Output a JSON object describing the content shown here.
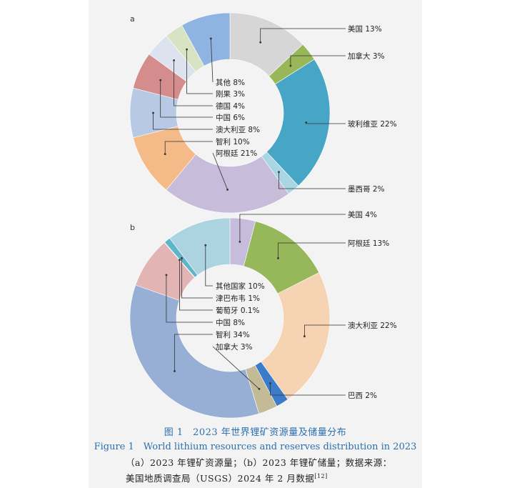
{
  "chart_data": [
    {
      "type": "donut",
      "panel_label": "a",
      "title": "2023年世界锂矿资源量",
      "slices": [
        {
          "label": "美国",
          "value": 13,
          "display": "美国 13%",
          "color": "#d6d6d6"
        },
        {
          "label": "加拿大",
          "value": 3,
          "display": "加拿大 3%",
          "color": "#97b758"
        },
        {
          "label": "玻利维亚",
          "value": 22,
          "display": "玻利维亚 22%",
          "color": "#47a6c6"
        },
        {
          "label": "墨西哥",
          "value": 2,
          "display": "墨西哥 2%",
          "color": "#a9d6e2"
        },
        {
          "label": "阿根廷",
          "value": 21,
          "display": "阿根廷 21%",
          "color": "#c7bcd9"
        },
        {
          "label": "智利",
          "value": 10,
          "display": "智利 10%",
          "color": "#f4ba87"
        },
        {
          "label": "澳大利亚",
          "value": 8,
          "display": "澳大利亚 8%",
          "color": "#b7c9e4"
        },
        {
          "label": "中国",
          "value": 6,
          "display": "中国 6%",
          "color": "#d58c8c"
        },
        {
          "label": "德国",
          "value": 4,
          "display": "德国 4%",
          "color": "#dce3ee"
        },
        {
          "label": "刚果",
          "value": 3,
          "display": "刚果 3%",
          "color": "#d7e4c4"
        },
        {
          "label": "其他",
          "value": 8,
          "display": "其他 8%",
          "color": "#8fb4e1"
        }
      ]
    },
    {
      "type": "donut",
      "panel_label": "b",
      "title": "2023年世界锂矿储量",
      "slices": [
        {
          "label": "美国",
          "value": 4,
          "display": "美国 4%",
          "color": "#c8bcdc"
        },
        {
          "label": "阿根廷",
          "value": 13,
          "display": "阿根廷 13%",
          "color": "#96b75a"
        },
        {
          "label": "澳大利亚",
          "value": 22,
          "display": "澳大利亚 22%",
          "color": "#f5d3b3"
        },
        {
          "label": "巴西",
          "value": 2,
          "display": "巴西 2%",
          "color": "#3c7bc9"
        },
        {
          "label": "加拿大",
          "value": 3,
          "display": "加拿大 3%",
          "color": "#c3bb96"
        },
        {
          "label": "智利",
          "value": 34,
          "display": "智利 34%",
          "color": "#97afd5"
        },
        {
          "label": "中国",
          "value": 8,
          "display": "中国 8%",
          "color": "#e3b4b4"
        },
        {
          "label": "葡萄牙",
          "value": 0.1,
          "display": "葡萄牙 0.1%",
          "color": "#7aa8cc"
        },
        {
          "label": "津巴布韦",
          "value": 1,
          "display": "津巴布韦 1%",
          "color": "#5fb4c8"
        },
        {
          "label": "其他国家",
          "value": 10,
          "display": "其他国家 10%",
          "color": "#acd4e0"
        }
      ]
    }
  ],
  "caption": {
    "cn_title": "图 1　2023 年世界锂矿资源量及储量分布",
    "en_title": "Figure 1　World lithium resources and reserves distribution in 2023",
    "note_line1": "（a）2023 年锂矿资源量；（b）2023 年锂矿储量；数据来源：",
    "note_line2": "美国地质调查局（USGS）2024 年 2 月数据",
    "note_ref": "[12]"
  }
}
